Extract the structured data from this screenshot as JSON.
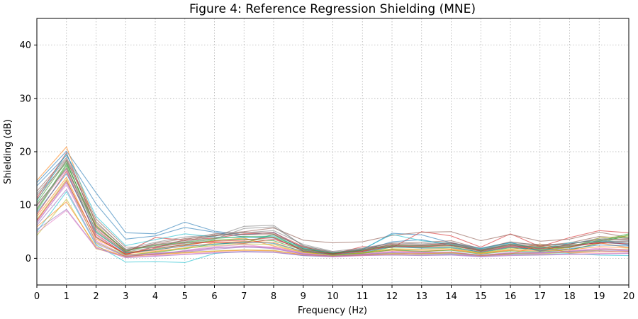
{
  "chart_data": {
    "type": "line",
    "title": "Figure 4: Reference Regression Shielding (MNE)",
    "xlabel": "Frequency (Hz)",
    "ylabel": "Shielding (dB)",
    "xlim": [
      0,
      20
    ],
    "ylim": [
      -5,
      45
    ],
    "xticks": [
      0,
      1,
      2,
      3,
      4,
      5,
      6,
      7,
      8,
      9,
      10,
      11,
      12,
      13,
      14,
      15,
      16,
      17,
      18,
      19,
      20
    ],
    "yticks": [
      0,
      10,
      20,
      30,
      40
    ],
    "grid": true,
    "x": [
      0,
      1,
      2,
      3,
      4,
      5,
      6,
      7,
      8,
      9,
      10,
      11,
      12,
      13,
      14,
      15,
      16,
      17,
      18,
      19,
      20
    ],
    "series": [
      {
        "color": "#1f77b4",
        "values": [
          14.2,
          20.1,
          12.3,
          4.8,
          4.6,
          6.8,
          5.1,
          4.4,
          4.9,
          1.8,
          0.9,
          1.6,
          4.7,
          4.4,
          2.9,
          1.9,
          3.0,
          1.4,
          2.7,
          3.6,
          2.4
        ]
      },
      {
        "color": "#ff7f0e",
        "values": [
          14.6,
          20.9,
          6.3,
          1.2,
          1.5,
          2.4,
          3.3,
          3.8,
          2.3,
          1.1,
          0.6,
          1.0,
          1.5,
          1.2,
          1.7,
          1.0,
          1.6,
          2.7,
          1.5,
          2.9,
          2.0
        ]
      },
      {
        "color": "#2ca02c",
        "values": [
          8.9,
          17.4,
          4.0,
          0.6,
          1.1,
          1.8,
          2.7,
          2.9,
          4.5,
          1.3,
          0.5,
          0.9,
          1.6,
          1.3,
          1.5,
          0.8,
          1.4,
          1.2,
          1.6,
          2.8,
          4.4
        ]
      },
      {
        "color": "#d62728",
        "values": [
          11.3,
          19.8,
          5.5,
          1.1,
          3.9,
          3.4,
          3.8,
          4.6,
          4.8,
          2.2,
          0.8,
          2.2,
          2.0,
          5.0,
          4.2,
          2.1,
          4.6,
          2.2,
          3.9,
          5.2,
          4.8
        ]
      },
      {
        "color": "#9467bd",
        "values": [
          6.6,
          14.2,
          3.1,
          0.3,
          0.9,
          1.2,
          1.7,
          2.1,
          2.0,
          0.9,
          0.4,
          0.6,
          1.0,
          0.8,
          0.9,
          0.5,
          0.8,
          1.0,
          1.1,
          1.4,
          1.2
        ]
      },
      {
        "color": "#8c564b",
        "values": [
          12.6,
          18.9,
          7.4,
          2.1,
          2.0,
          3.5,
          4.6,
          5.0,
          5.7,
          3.4,
          2.9,
          3.1,
          4.3,
          4.9,
          5.0,
          3.3,
          4.5,
          3.2,
          3.6,
          4.9,
          3.9
        ]
      },
      {
        "color": "#e377c2",
        "values": [
          9.5,
          16.6,
          4.2,
          0.8,
          0.6,
          1.5,
          2.2,
          2.6,
          1.9,
          0.8,
          0.3,
          0.8,
          1.2,
          1.1,
          0.7,
          0.4,
          0.9,
          0.9,
          1.3,
          1.7,
          1.5
        ]
      },
      {
        "color": "#7f7f7f",
        "values": [
          11.8,
          17.9,
          5.8,
          1.5,
          2.5,
          3.1,
          4.1,
          6.0,
          6.2,
          2.3,
          1.2,
          1.3,
          2.3,
          2.1,
          2.6,
          1.4,
          2.3,
          2.2,
          2.0,
          3.1,
          3.3
        ]
      },
      {
        "color": "#bcbd22",
        "values": [
          4.3,
          11.1,
          1.8,
          0.4,
          0.8,
          1.1,
          1.4,
          1.6,
          1.5,
          0.6,
          0.4,
          0.7,
          0.9,
          0.8,
          1.0,
          0.6,
          0.9,
          0.8,
          1.2,
          1.5,
          1.8
        ]
      },
      {
        "color": "#17becf",
        "values": [
          5.0,
          12.5,
          2.5,
          -0.7,
          -0.6,
          -0.8,
          0.9,
          1.3,
          1.2,
          0.5,
          0.3,
          0.6,
          0.7,
          0.6,
          0.8,
          0.4,
          0.7,
          0.7,
          0.9,
          0.6,
          0.5
        ]
      },
      {
        "color": "#1f77b4",
        "values": [
          13.6,
          19.3,
          10.2,
          3.6,
          4.2,
          5.8,
          4.9,
          4.0,
          3.8,
          1.6,
          0.8,
          1.5,
          3.1,
          3.5,
          2.4,
          1.6,
          2.6,
          1.3,
          2.2,
          3.0,
          2.6
        ]
      },
      {
        "color": "#ff7f0e",
        "values": [
          7.8,
          15.2,
          3.6,
          0.9,
          1.3,
          2.0,
          2.9,
          3.2,
          3.0,
          1.2,
          0.6,
          1.1,
          1.7,
          1.5,
          1.6,
          0.9,
          1.5,
          1.4,
          1.6,
          2.2,
          2.0
        ]
      },
      {
        "color": "#2ca02c",
        "values": [
          10.4,
          18.2,
          5.0,
          1.0,
          1.7,
          2.6,
          3.4,
          3.6,
          3.3,
          1.5,
          0.7,
          1.0,
          2.1,
          2.0,
          2.2,
          1.1,
          2.0,
          1.7,
          2.1,
          3.4,
          4.0
        ]
      },
      {
        "color": "#d62728",
        "values": [
          8.2,
          16.3,
          4.5,
          0.7,
          2.2,
          2.9,
          3.0,
          2.8,
          3.6,
          1.7,
          0.9,
          1.4,
          2.6,
          2.4,
          2.8,
          1.5,
          2.4,
          1.9,
          2.5,
          2.8,
          3.1
        ]
      },
      {
        "color": "#9467bd",
        "values": [
          5.4,
          9.2,
          2.0,
          0.1,
          0.4,
          0.7,
          1.0,
          1.2,
          1.1,
          0.5,
          0.3,
          0.5,
          0.6,
          0.5,
          0.6,
          0.3,
          0.5,
          0.6,
          0.7,
          0.8,
          0.9
        ]
      },
      {
        "color": "#8c564b",
        "values": [
          9.9,
          17.0,
          5.9,
          1.3,
          2.8,
          3.7,
          4.2,
          4.9,
          4.6,
          2.0,
          1.0,
          1.8,
          2.8,
          3.0,
          3.3,
          1.8,
          3.1,
          2.4,
          2.9,
          4.1,
          3.7
        ]
      },
      {
        "color": "#e377c2",
        "values": [
          6.9,
          13.8,
          3.3,
          0.5,
          1.0,
          1.3,
          1.9,
          2.3,
          2.1,
          1.0,
          0.4,
          0.8,
          1.3,
          1.2,
          1.1,
          0.6,
          1.1,
          1.0,
          1.4,
          1.9,
          1.6
        ]
      },
      {
        "color": "#7f7f7f",
        "values": [
          12.1,
          18.6,
          6.6,
          1.7,
          3.0,
          4.0,
          4.4,
          4.8,
          5.2,
          2.6,
          1.3,
          1.9,
          2.9,
          2.7,
          3.0,
          1.7,
          2.9,
          2.6,
          2.6,
          3.8,
          3.4
        ]
      },
      {
        "color": "#bcbd22",
        "values": [
          7.3,
          14.8,
          2.9,
          0.6,
          1.2,
          1.9,
          2.4,
          2.7,
          2.6,
          1.1,
          0.6,
          1.0,
          1.8,
          1.7,
          1.9,
          1.0,
          1.8,
          1.6,
          2.0,
          3.8,
          4.2
        ]
      },
      {
        "color": "#17becf",
        "values": [
          10.8,
          19.6,
          7.9,
          2.4,
          3.5,
          4.6,
          4.0,
          3.9,
          4.2,
          1.9,
          1.0,
          1.7,
          4.5,
          3.3,
          2.7,
          1.8,
          2.9,
          1.8,
          2.9,
          3.2,
          2.8
        ]
      },
      {
        "color": "#1f77b4",
        "values": [
          8.6,
          15.9,
          4.8,
          1.0,
          1.6,
          2.3,
          2.6,
          3.1,
          2.8,
          1.3,
          0.7,
          1.2,
          2.2,
          1.9,
          2.0,
          1.2,
          2.1,
          1.5,
          1.8,
          2.5,
          2.3
        ]
      },
      {
        "color": "#ff7f0e",
        "values": [
          5.9,
          10.6,
          2.2,
          0.3,
          0.7,
          1.0,
          1.3,
          1.5,
          1.4,
          0.7,
          0.4,
          0.6,
          0.8,
          0.9,
          1.1,
          0.5,
          0.8,
          2.4,
          1.0,
          1.2,
          1.3
        ]
      },
      {
        "color": "#2ca02c",
        "values": [
          9.2,
          17.7,
          6.1,
          1.4,
          2.4,
          3.0,
          3.7,
          4.1,
          4.0,
          1.8,
          0.9,
          1.5,
          2.4,
          2.3,
          2.5,
          1.4,
          2.6,
          2.0,
          2.4,
          3.2,
          4.6
        ]
      },
      {
        "color": "#d62728",
        "values": [
          7.1,
          14.5,
          3.9,
          0.8,
          1.9,
          2.5,
          3.2,
          3.4,
          3.9,
          1.4,
          0.8,
          1.3,
          2.3,
          2.2,
          2.4,
          1.3,
          2.2,
          1.8,
          2.2,
          3.0,
          2.7
        ]
      },
      {
        "color": "#9467bd",
        "values": [
          6.2,
          12.9,
          2.7,
          0.4,
          0.8,
          1.4,
          2.0,
          2.2,
          1.8,
          0.8,
          0.4,
          0.7,
          1.1,
          1.0,
          1.2,
          0.6,
          1.0,
          1.1,
          1.3,
          1.6,
          1.4
        ]
      },
      {
        "color": "#8c564b",
        "values": [
          11.0,
          18.4,
          6.9,
          1.6,
          2.6,
          3.3,
          4.3,
          4.5,
          4.4,
          2.1,
          1.1,
          1.6,
          2.6,
          2.5,
          2.9,
          1.6,
          2.7,
          2.3,
          2.7,
          3.5,
          3.6
        ]
      },
      {
        "color": "#e377c2",
        "values": [
          4.8,
          9.0,
          1.9,
          0.2,
          0.5,
          0.8,
          1.1,
          1.3,
          1.2,
          0.6,
          0.3,
          0.5,
          0.7,
          0.6,
          0.7,
          0.4,
          0.6,
          0.7,
          0.8,
          0.9,
          1.0
        ]
      },
      {
        "color": "#7f7f7f",
        "values": [
          10.1,
          16.8,
          5.2,
          1.2,
          2.1,
          2.8,
          3.6,
          5.6,
          5.9,
          2.4,
          1.1,
          1.7,
          2.5,
          2.4,
          2.6,
          1.5,
          2.5,
          2.1,
          2.3,
          3.3,
          3.1
        ]
      }
    ]
  }
}
